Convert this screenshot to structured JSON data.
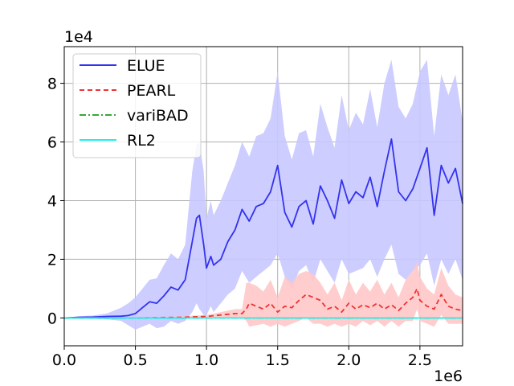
{
  "chart_data": {
    "type": "line",
    "x_multiplier_label": "1e6",
    "y_multiplier_label": "1e4",
    "xlim": [
      0.0,
      2.8
    ],
    "ylim": [
      -0.95,
      9.25
    ],
    "x_ticks": [
      0.0,
      0.5,
      1.0,
      1.5,
      2.0,
      2.5
    ],
    "x_tick_labels": [
      "0.0",
      "0.5",
      "1.0",
      "1.5",
      "2.0",
      "2.5"
    ],
    "y_ticks": [
      0,
      2,
      4,
      6,
      8
    ],
    "y_tick_labels": [
      "0",
      "2",
      "4",
      "6",
      "8"
    ],
    "grid": true,
    "legend_position": "upper-left",
    "series": [
      {
        "name": "ELUE",
        "color": "#3333ee",
        "linestyle": "solid",
        "band_color": "#c8c8ff",
        "x": [
          0.0,
          0.1,
          0.2,
          0.3,
          0.4,
          0.45,
          0.5,
          0.55,
          0.6,
          0.65,
          0.7,
          0.75,
          0.8,
          0.85,
          0.9,
          0.93,
          0.95,
          0.98,
          1.0,
          1.03,
          1.05,
          1.1,
          1.15,
          1.2,
          1.25,
          1.3,
          1.35,
          1.4,
          1.45,
          1.5,
          1.55,
          1.6,
          1.65,
          1.7,
          1.75,
          1.8,
          1.85,
          1.9,
          1.95,
          2.0,
          2.05,
          2.1,
          2.15,
          2.2,
          2.25,
          2.3,
          2.35,
          2.4,
          2.45,
          2.5,
          2.55,
          2.6,
          2.65,
          2.7,
          2.75,
          2.8
        ],
        "y": [
          0.0,
          0.02,
          0.03,
          0.05,
          0.06,
          0.08,
          0.15,
          0.35,
          0.55,
          0.5,
          0.75,
          1.05,
          0.95,
          1.3,
          2.6,
          3.4,
          3.5,
          2.5,
          1.7,
          2.1,
          1.8,
          2.0,
          2.6,
          3.0,
          3.7,
          3.3,
          3.8,
          3.9,
          4.3,
          5.2,
          3.6,
          3.1,
          3.8,
          4.0,
          3.2,
          4.5,
          4.0,
          3.4,
          4.7,
          3.9,
          4.3,
          4.1,
          4.8,
          3.8,
          5.0,
          6.1,
          4.3,
          4.0,
          4.4,
          5.1,
          5.8,
          3.5,
          5.2,
          4.6,
          5.1,
          3.9
        ],
        "lower": [
          0.0,
          -0.02,
          -0.03,
          -0.05,
          -0.1,
          -0.25,
          -0.4,
          -0.3,
          -0.2,
          -0.35,
          -0.3,
          -0.1,
          -0.2,
          -0.1,
          0.2,
          0.5,
          0.3,
          0.1,
          0.1,
          0.4,
          0.2,
          0.5,
          0.8,
          1.0,
          1.6,
          1.2,
          1.4,
          1.6,
          1.8,
          2.2,
          1.4,
          1.0,
          1.6,
          1.8,
          1.2,
          2.0,
          1.6,
          1.2,
          2.0,
          1.5,
          1.6,
          1.7,
          2.0,
          1.4,
          2.0,
          2.5,
          1.5,
          1.3,
          1.6,
          1.8,
          2.2,
          1.1,
          2.0,
          1.5,
          2.0,
          1.3
        ],
        "upper": [
          0.0,
          0.06,
          0.08,
          0.15,
          0.35,
          0.5,
          0.7,
          1.0,
          1.3,
          1.35,
          1.8,
          2.2,
          2.0,
          2.5,
          5.0,
          5.9,
          6.0,
          5.0,
          3.4,
          4.0,
          3.5,
          4.0,
          4.6,
          5.2,
          6.0,
          5.5,
          6.2,
          6.3,
          6.8,
          8.4,
          6.2,
          5.4,
          6.3,
          6.4,
          5.5,
          7.3,
          6.5,
          5.8,
          7.6,
          6.4,
          7.0,
          6.6,
          7.8,
          6.5,
          8.0,
          8.8,
          7.2,
          6.8,
          7.3,
          8.4,
          8.8,
          6.2,
          8.3,
          7.6,
          8.3,
          6.7
        ]
      },
      {
        "name": "PEARL",
        "color": "#ee3333",
        "linestyle": "dashed",
        "band_color": "#ffc8c8",
        "x": [
          0.0,
          0.5,
          0.8,
          1.0,
          1.1,
          1.2,
          1.25,
          1.28,
          1.3,
          1.35,
          1.4,
          1.45,
          1.5,
          1.55,
          1.6,
          1.65,
          1.7,
          1.75,
          1.8,
          1.85,
          1.9,
          1.95,
          2.0,
          2.05,
          2.1,
          2.15,
          2.2,
          2.25,
          2.3,
          2.35,
          2.4,
          2.45,
          2.48,
          2.5,
          2.55,
          2.6,
          2.65,
          2.7,
          2.75,
          2.8
        ],
        "y": [
          0.0,
          0.0,
          0.02,
          0.05,
          0.1,
          0.15,
          0.15,
          0.3,
          0.5,
          0.4,
          0.3,
          0.5,
          0.2,
          0.4,
          0.35,
          0.6,
          0.8,
          0.7,
          0.6,
          0.3,
          0.4,
          0.2,
          0.5,
          0.3,
          0.45,
          0.35,
          0.5,
          0.3,
          0.45,
          0.25,
          0.5,
          0.7,
          1.0,
          0.6,
          0.4,
          0.3,
          0.8,
          0.4,
          0.3,
          0.25
        ],
        "lower": [
          0.0,
          0.0,
          0.0,
          0.0,
          0.0,
          0.0,
          0.0,
          -0.1,
          -0.3,
          -0.25,
          -0.2,
          -0.3,
          -0.2,
          -0.3,
          -0.2,
          -0.1,
          0.0,
          -0.2,
          -0.2,
          -0.3,
          -0.2,
          -0.3,
          -0.2,
          -0.3,
          -0.1,
          -0.25,
          -0.1,
          -0.3,
          -0.1,
          -0.3,
          -0.1,
          -0.1,
          0.3,
          -0.1,
          -0.2,
          -0.3,
          0.1,
          -0.2,
          -0.2,
          -0.2
        ],
        "upper": [
          0.0,
          0.0,
          0.05,
          0.1,
          0.2,
          0.3,
          0.3,
          1.2,
          1.2,
          1.1,
          0.9,
          1.3,
          0.7,
          1.4,
          1.2,
          1.5,
          1.6,
          1.5,
          1.2,
          0.8,
          1.2,
          0.6,
          1.3,
          0.8,
          1.2,
          0.9,
          1.3,
          0.8,
          1.2,
          0.7,
          1.3,
          1.6,
          1.9,
          1.4,
          1.0,
          0.8,
          1.7,
          1.1,
          0.8,
          0.7
        ]
      },
      {
        "name": "variBAD",
        "color": "#33aa33",
        "linestyle": "dashdot",
        "x": [
          0.0,
          2.8
        ],
        "y": [
          0.0,
          0.0
        ]
      },
      {
        "name": "RL2",
        "color": "#22eeee",
        "linestyle": "solid",
        "x": [
          0.0,
          2.8
        ],
        "y": [
          0.0,
          0.0
        ]
      }
    ]
  }
}
